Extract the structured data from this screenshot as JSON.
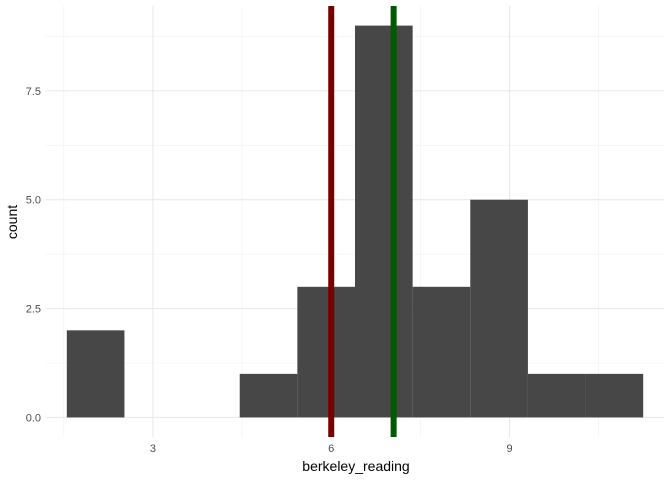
{
  "chart_data": {
    "type": "histogram",
    "xlabel": "berkeley_reading",
    "ylabel": "count",
    "x_ticks": [
      3,
      6,
      9
    ],
    "y_ticks": [
      0.0,
      2.5,
      5.0,
      7.5
    ],
    "y_tick_labels": [
      "0.0",
      "2.5",
      "5.0",
      "7.5"
    ],
    "xlim": [
      1.2,
      11.6
    ],
    "ylim": [
      -0.45,
      9.45
    ],
    "grid": true,
    "bins": [
      {
        "x0": 1.55,
        "x1": 2.52,
        "count": 2
      },
      {
        "x0": 2.52,
        "x1": 3.49,
        "count": 0
      },
      {
        "x0": 3.49,
        "x1": 4.46,
        "count": 0
      },
      {
        "x0": 4.46,
        "x1": 5.43,
        "count": 1
      },
      {
        "x0": 5.43,
        "x1": 6.4,
        "count": 3
      },
      {
        "x0": 6.4,
        "x1": 7.37,
        "count": 9
      },
      {
        "x0": 7.37,
        "x1": 8.34,
        "count": 3
      },
      {
        "x0": 8.34,
        "x1": 9.31,
        "count": 5
      },
      {
        "x0": 9.31,
        "x1": 10.28,
        "count": 1
      },
      {
        "x0": 10.28,
        "x1": 11.25,
        "count": 1
      }
    ],
    "vlines": [
      {
        "x": 6.0,
        "color": "#7a0000"
      },
      {
        "x": 7.05,
        "color": "#005a00"
      }
    ],
    "bar_color": "#474747"
  }
}
